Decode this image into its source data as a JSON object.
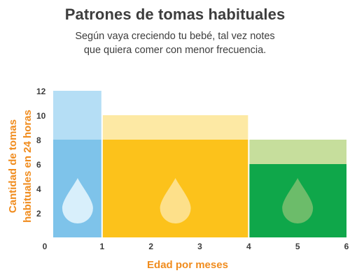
{
  "header": {
    "title": "Patrones de tomas habituales",
    "subtitle_line1": "Según vaya creciendo tu bebé, tal vez notes",
    "subtitle_line2": "que quiera comer con menor frecuencia."
  },
  "chart_data": {
    "type": "bar",
    "xlabel": "Edad por meses",
    "ylabel_line1": "Cantidad de tomas",
    "ylabel_line2": "habituales en 24 horas",
    "x_ticks": [
      0,
      1,
      2,
      3,
      4,
      5,
      6
    ],
    "y_ticks": [
      2,
      4,
      6,
      8,
      10,
      12
    ],
    "xlim": [
      0,
      6
    ],
    "ylim": [
      0,
      12
    ],
    "grid": false,
    "segments": [
      {
        "x_start": 0,
        "x_end": 1,
        "low": 8,
        "high": 12,
        "color_low": "#7ec3ea",
        "color_high": "#b5def5",
        "icon_color": "#d8effb"
      },
      {
        "x_start": 1,
        "x_end": 4,
        "low": 8,
        "high": 10,
        "color_low": "#fcc21b",
        "color_high": "#fde9a4",
        "icon_color": "#fde08a"
      },
      {
        "x_start": 4,
        "x_end": 6,
        "low": 6,
        "high": 8,
        "color_low": "#0fa74a",
        "color_high": "#c6de9c",
        "icon_color": "#6cbc6a"
      }
    ]
  }
}
